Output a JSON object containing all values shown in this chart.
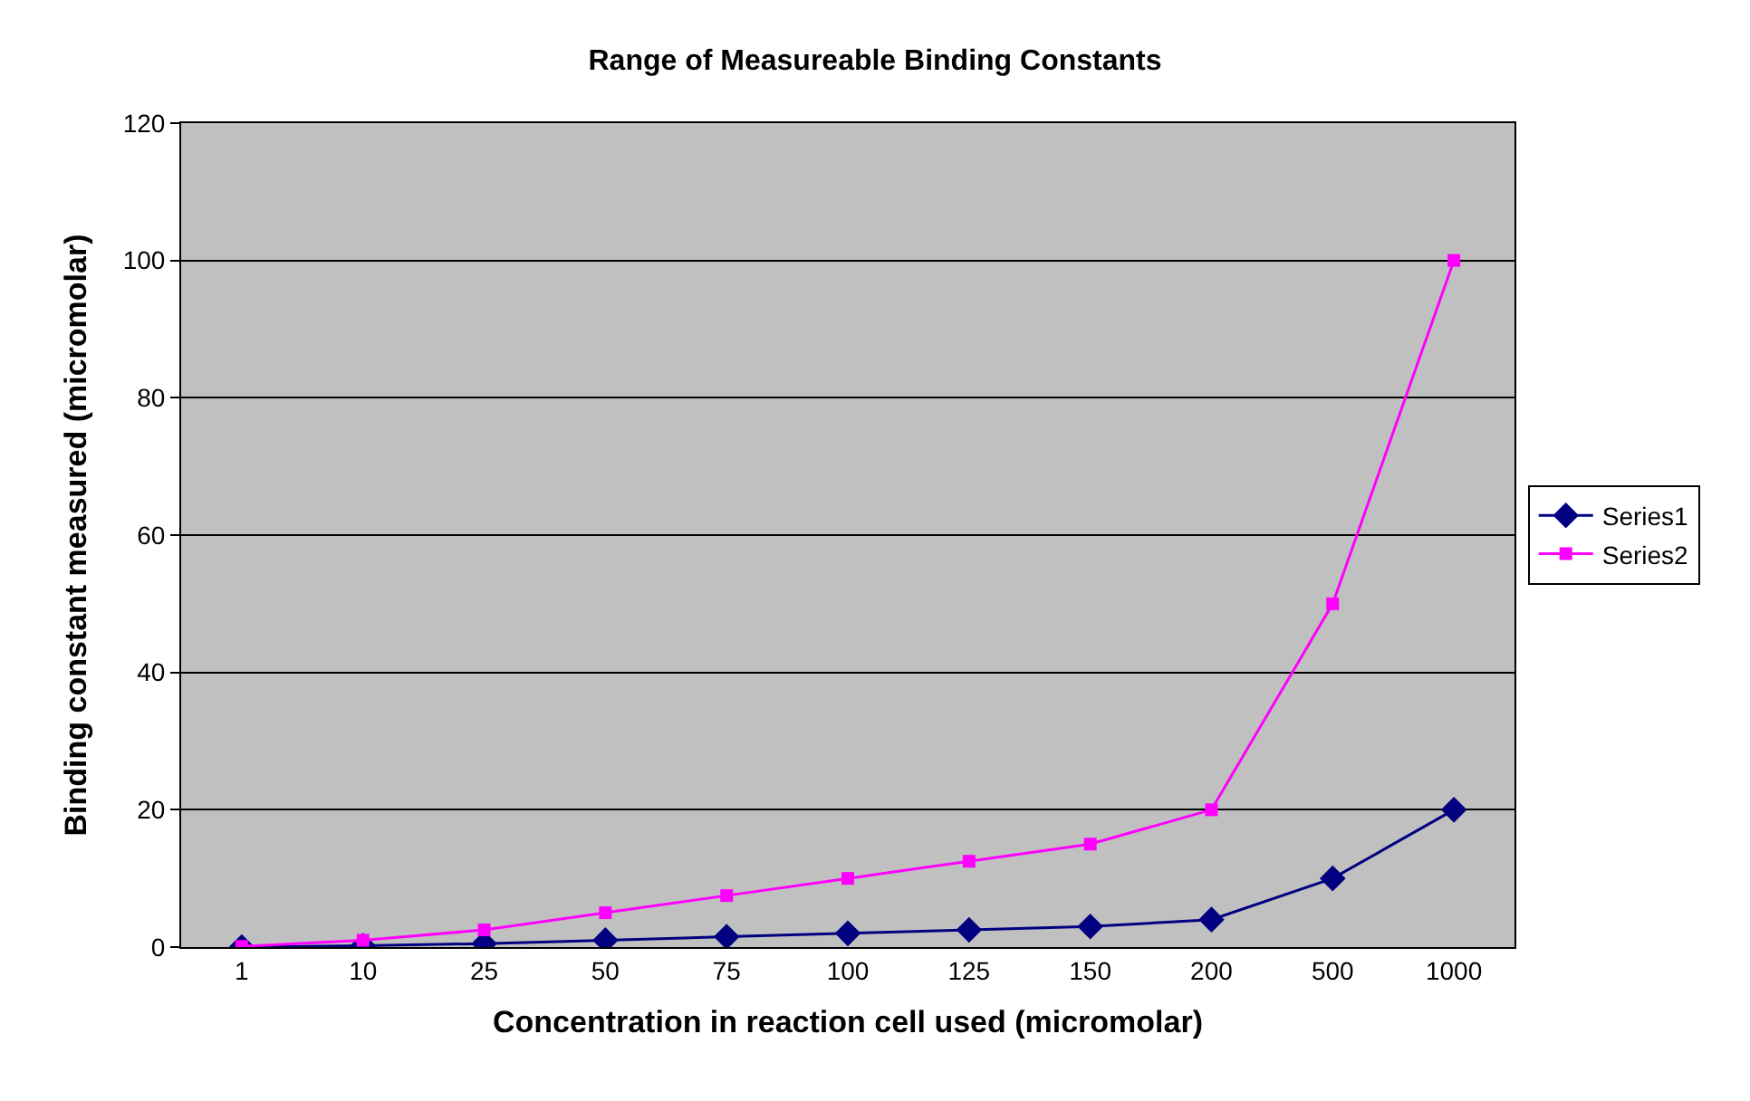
{
  "chart_data": {
    "type": "line",
    "title": "Range of Measureable Binding Constants",
    "xlabel": "Concentration in reaction cell used (micromolar)",
    "ylabel": "Binding constant measured (micromolar)",
    "categories": [
      "1",
      "10",
      "25",
      "50",
      "75",
      "100",
      "125",
      "150",
      "200",
      "500",
      "1000"
    ],
    "series": [
      {
        "name": "Series1",
        "color": "#000080",
        "marker": "diamond",
        "values": [
          0,
          0.2,
          0.5,
          1,
          1.5,
          2,
          2.5,
          3,
          4,
          10,
          20
        ]
      },
      {
        "name": "Series2",
        "color": "#ff00ff",
        "marker": "square",
        "values": [
          0.1,
          1,
          2.5,
          5,
          7.5,
          10,
          12.5,
          15,
          20,
          50,
          100
        ]
      }
    ],
    "ylim": [
      0,
      120
    ],
    "yticks": [
      0,
      20,
      40,
      60,
      80,
      100,
      120
    ],
    "grid": "y",
    "legend": "right"
  }
}
